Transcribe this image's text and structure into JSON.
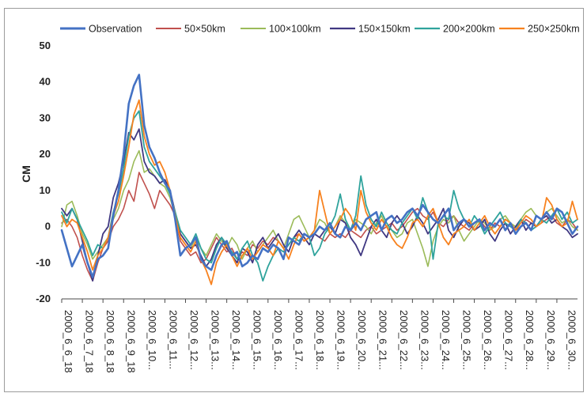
{
  "chart_data": {
    "type": "line",
    "title": "",
    "xlabel": "",
    "ylabel": "CM",
    "ylim": [
      -20,
      50
    ],
    "yticks": [
      -20,
      -10,
      0,
      10,
      20,
      30,
      40,
      50
    ],
    "grid": false,
    "legend_position": "top",
    "categories": [
      "2000_6_6_18",
      "2000_6_7_18",
      "2000_6_8_18",
      "2000_6_9_18",
      "2000_6_10...",
      "2000_6_11...",
      "2000_6_12...",
      "2000_6_13...",
      "2000_6_14...",
      "2000_6_15...",
      "2000_6_16...",
      "2000_6_17...",
      "2000_6_18...",
      "2000_6_19...",
      "2000_6_20...",
      "2000_6_21...",
      "2000_6_22...",
      "2000_6_23...",
      "2000_6_24...",
      "2000_6_25...",
      "2000_6_26...",
      "2000_6_27...",
      "2000_6_28...",
      "2000_6_29...",
      "2000_6_30..."
    ],
    "x": [
      0,
      0.25,
      0.5,
      0.75,
      1,
      1.25,
      1.5,
      1.75,
      2,
      2.25,
      2.5,
      2.75,
      3,
      3.25,
      3.5,
      3.75,
      4,
      4.25,
      4.5,
      4.75,
      5,
      5.25,
      5.5,
      5.75,
      6,
      6.25,
      6.5,
      6.75,
      7,
      7.25,
      7.5,
      7.75,
      8,
      8.25,
      8.5,
      8.75,
      9,
      9.25,
      9.5,
      9.75,
      10,
      10.25,
      10.5,
      10.75,
      11,
      11.25,
      11.5,
      11.75,
      12,
      12.25,
      12.5,
      12.75,
      13,
      13.25,
      13.5,
      13.75,
      14,
      14.25,
      14.5,
      14.75,
      15,
      15.25,
      15.5,
      15.75,
      16,
      16.25,
      16.5,
      16.75,
      17,
      17.25,
      17.5,
      17.75,
      18,
      18.25,
      18.5,
      18.75,
      19,
      19.25,
      19.5,
      19.75,
      20,
      20.25,
      20.5,
      20.75,
      21,
      21.25,
      21.5,
      21.75,
      22,
      22.25,
      22.5,
      22.75,
      23,
      23.25,
      23.5,
      23.75,
      24,
      24.25,
      24.5,
      24.75,
      25
    ],
    "series": [
      {
        "name": "Observation",
        "color": "#4472c4",
        "width": 2.6,
        "values": [
          -1,
          -6,
          -11,
          -8,
          -5,
          -10,
          -14,
          -9,
          -8,
          -6,
          3,
          10,
          20,
          34,
          39,
          42,
          28,
          22,
          19,
          15,
          12,
          10,
          2,
          -8,
          -6,
          -5,
          -3,
          -9,
          -11,
          -12,
          -8,
          -5,
          -4,
          -8,
          -7,
          -11,
          -10,
          -8,
          -9,
          -6,
          -7,
          -5,
          -6,
          -9,
          -3,
          -4,
          -5,
          -2,
          -3,
          -2,
          0,
          -1,
          1,
          -2,
          -3,
          0,
          -1,
          1,
          -1,
          2,
          3,
          4,
          -1,
          2,
          3,
          1,
          2,
          4,
          5,
          3,
          6,
          4,
          2,
          1,
          3,
          5,
          -1,
          1,
          2,
          0,
          1,
          2,
          -1,
          1,
          0,
          2,
          -1,
          1,
          -2,
          0,
          1,
          -1,
          3,
          2,
          4,
          2,
          5,
          4,
          1,
          -2,
          0
        ]
      },
      {
        "name": "50×50km",
        "color": "#c0504d",
        "width": 1.6,
        "values": [
          1,
          2,
          0,
          -3,
          -8,
          -12,
          -15,
          -10,
          -6,
          -4,
          0,
          2,
          5,
          10,
          7,
          15,
          12,
          9,
          5,
          10,
          8,
          6,
          3,
          -4,
          -6,
          -8,
          -7,
          -10,
          -9,
          -6,
          -3,
          -5,
          -7,
          -6,
          -9,
          -7,
          -8,
          -5,
          -6,
          -4,
          -5,
          -3,
          -4,
          -6,
          -5,
          -3,
          -2,
          -4,
          -3,
          -2,
          -3,
          -4,
          -2,
          -3,
          -2,
          -3,
          -1,
          -2,
          -3,
          -1,
          0,
          -2,
          -1,
          0,
          1,
          -1,
          0,
          2,
          4,
          5,
          3,
          2,
          4,
          1,
          0,
          2,
          3,
          1,
          0,
          -1,
          1,
          2,
          0,
          -1,
          1,
          0,
          2,
          1,
          -1,
          0,
          2,
          1,
          0,
          1,
          2,
          3,
          1,
          0,
          2,
          1,
          -1
        ]
      },
      {
        "name": "100×100km",
        "color": "#9bbb59",
        "width": 1.6,
        "values": [
          0,
          6,
          7,
          3,
          -2,
          -5,
          -9,
          -7,
          -5,
          -3,
          2,
          5,
          10,
          13,
          18,
          21,
          15,
          16,
          14,
          12,
          11,
          8,
          3,
          -2,
          -4,
          -6,
          -3,
          -6,
          -8,
          -5,
          -2,
          -4,
          -6,
          -3,
          -5,
          -9,
          -6,
          -4,
          -7,
          -5,
          -3,
          -1,
          -4,
          -6,
          -2,
          2,
          3,
          0,
          -3,
          -1,
          2,
          1,
          -2,
          0,
          3,
          1,
          -1,
          2,
          1,
          0,
          -2,
          1,
          3,
          0,
          -1,
          -3,
          -2,
          1,
          2,
          -2,
          -6,
          -11,
          -4,
          0,
          2,
          1,
          3,
          -1,
          -4,
          -2,
          0,
          2,
          1,
          -1,
          0,
          2,
          3,
          1,
          0,
          2,
          4,
          5,
          3,
          2,
          4,
          5,
          3,
          1,
          2,
          0,
          -1
        ]
      },
      {
        "name": "150×150km",
        "color": "#403882",
        "width": 1.8,
        "values": [
          5,
          3,
          5,
          2,
          -4,
          -10,
          -15,
          -8,
          -2,
          0,
          8,
          12,
          18,
          26,
          24,
          27,
          18,
          15,
          14,
          12,
          13,
          10,
          4,
          -2,
          -4,
          -6,
          -5,
          -8,
          -11,
          -9,
          -5,
          -3,
          -6,
          -8,
          -10,
          -6,
          -7,
          -10,
          -5,
          -3,
          -6,
          -4,
          -2,
          -5,
          -7,
          -3,
          -1,
          -3,
          -5,
          -2,
          -3,
          -1,
          0,
          -2,
          2,
          1,
          -3,
          -5,
          -8,
          -4,
          0,
          2,
          -1,
          -3,
          1,
          3,
          1,
          -2,
          0,
          3,
          1,
          -2,
          0,
          2,
          5,
          -1,
          -3,
          0,
          2,
          1,
          -1,
          0,
          2,
          -2,
          -4,
          -1,
          1,
          -2,
          0,
          2,
          -1,
          1,
          0,
          2,
          3,
          1,
          2,
          0,
          -1,
          -3,
          -2
        ]
      },
      {
        "name": "200×200km",
        "color": "#2fa39c",
        "width": 1.8,
        "values": [
          4,
          1,
          5,
          2,
          -1,
          -4,
          -8,
          -5,
          -6,
          -3,
          4,
          9,
          16,
          25,
          30,
          32,
          22,
          18,
          16,
          14,
          12,
          9,
          4,
          -1,
          -3,
          -5,
          -2,
          -6,
          -9,
          -10,
          -6,
          -3,
          -5,
          -7,
          -9,
          -6,
          -4,
          -8,
          -10,
          -15,
          -11,
          -8,
          -6,
          -7,
          -5,
          -3,
          -4,
          -2,
          -3,
          -8,
          -6,
          -2,
          0,
          3,
          9,
          2,
          -1,
          3,
          14,
          6,
          2,
          0,
          4,
          1,
          -1,
          -2,
          1,
          3,
          5,
          2,
          8,
          4,
          -9,
          1,
          3,
          2,
          10,
          5,
          2,
          0,
          3,
          1,
          -2,
          0,
          2,
          4,
          1,
          0,
          -1,
          2,
          1,
          -1,
          0,
          2,
          1,
          3,
          5,
          2,
          4,
          1,
          2
        ]
      },
      {
        "name": "250×250km",
        "color": "#f7821f",
        "width": 1.8,
        "values": [
          3,
          0,
          2,
          1,
          -3,
          -7,
          -12,
          -8,
          -6,
          -3,
          3,
          7,
          14,
          22,
          31,
          35,
          25,
          20,
          17,
          18,
          15,
          10,
          3,
          -3,
          -5,
          -7,
          -4,
          -9,
          -12,
          -16,
          -10,
          -7,
          -5,
          -8,
          -11,
          -8,
          -6,
          -9,
          -7,
          -5,
          -6,
          -8,
          -4,
          -6,
          -9,
          -5,
          -2,
          -4,
          -3,
          -1,
          10,
          4,
          -2,
          0,
          2,
          5,
          3,
          -1,
          10,
          4,
          1,
          -1,
          2,
          0,
          -3,
          -5,
          -6,
          -3,
          1,
          2,
          0,
          3,
          5,
          1,
          -3,
          -5,
          -2,
          -1,
          0,
          2,
          -1,
          1,
          3,
          0,
          -2,
          0,
          2,
          1,
          -1,
          1,
          3,
          2,
          0,
          1,
          8,
          6,
          2,
          0,
          1,
          7,
          2
        ]
      }
    ]
  }
}
